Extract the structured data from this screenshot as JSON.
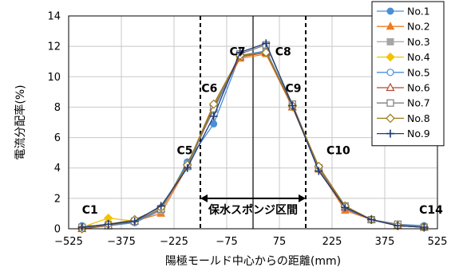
{
  "chart_data": {
    "type": "line",
    "xlabel": "陽極モールド中心からの距離(mm)",
    "ylabel": "電流分配率(%)",
    "xlim": [
      -525,
      525
    ],
    "ylim": [
      0,
      14
    ],
    "x_ticks": [
      -525,
      -375,
      -225,
      -75,
      75,
      225,
      375,
      525
    ],
    "x_tick_labels": [
      "−525",
      "−375",
      "−225",
      "−75",
      "75",
      "225",
      "375",
      "525"
    ],
    "y_ticks": [
      0,
      2,
      4,
      6,
      8,
      10,
      12,
      14
    ],
    "grid": true,
    "legend_position": "top-right",
    "x": [
      -487,
      -412,
      -337,
      -262,
      -187,
      -112,
      -37,
      37,
      112,
      187,
      262,
      337,
      412,
      487
    ],
    "series": [
      {
        "name": "No.1",
        "color": "#4a8fd6",
        "marker": "circle-filled",
        "values": [
          0.2,
          0.2,
          0.4,
          1.2,
          4.4,
          6.9,
          11.4,
          11.6,
          8.1,
          4.0,
          1.3,
          0.6,
          0.3,
          0.2
        ]
      },
      {
        "name": "No.2",
        "color": "#f07c21",
        "marker": "triangle-filled",
        "values": [
          0.0,
          0.2,
          0.5,
          1.0,
          4.1,
          8.0,
          11.2,
          11.5,
          8.0,
          3.9,
          1.2,
          0.6,
          0.2,
          0.1
        ]
      },
      {
        "name": "No.3",
        "color": "#a6a6a6",
        "marker": "square-filled",
        "values": [
          0.1,
          0.3,
          0.5,
          1.2,
          4.2,
          7.9,
          11.3,
          11.7,
          8.2,
          4.0,
          1.4,
          0.6,
          0.3,
          0.1
        ]
      },
      {
        "name": "No.4",
        "color": "#f2c300",
        "marker": "diamond-filled",
        "values": [
          0.1,
          0.7,
          0.5,
          1.3,
          4.2,
          8.1,
          11.3,
          11.6,
          8.0,
          4.1,
          1.4,
          0.6,
          0.2,
          0.1
        ]
      },
      {
        "name": "No.5",
        "color": "#4a8fd6",
        "marker": "circle-open",
        "values": [
          0.1,
          0.3,
          0.4,
          1.3,
          4.3,
          7.8,
          11.4,
          11.7,
          8.1,
          4.0,
          1.4,
          0.6,
          0.2,
          0.1
        ]
      },
      {
        "name": "No.6",
        "color": "#b34a32",
        "marker": "triangle-open",
        "values": [
          0.0,
          0.2,
          0.5,
          1.3,
          4.1,
          8.0,
          11.3,
          11.6,
          8.0,
          4.0,
          1.4,
          0.6,
          0.2,
          0.1
        ]
      },
      {
        "name": "No.7",
        "color": "#7f7f7f",
        "marker": "square-open",
        "values": [
          0.1,
          0.2,
          0.5,
          1.3,
          4.1,
          7.9,
          11.5,
          12.1,
          8.2,
          4.0,
          1.5,
          0.6,
          0.3,
          0.1
        ]
      },
      {
        "name": "No.8",
        "color": "#9c7a1c",
        "marker": "diamond-open",
        "values": [
          0.0,
          0.3,
          0.6,
          1.4,
          4.2,
          8.2,
          11.4,
          11.6,
          8.1,
          4.1,
          1.5,
          0.6,
          0.2,
          0.1
        ]
      },
      {
        "name": "No.9",
        "color": "#1f3a7a",
        "marker": "plus",
        "values": [
          0.1,
          0.3,
          0.5,
          1.5,
          4.0,
          7.4,
          11.6,
          12.2,
          8.1,
          3.8,
          1.4,
          0.6,
          0.2,
          0.1
        ]
      }
    ],
    "annotations": [
      {
        "text": "C1",
        "x": -487,
        "y": 1.0
      },
      {
        "text": "C5",
        "x": -217,
        "y": 4.9
      },
      {
        "text": "C6",
        "x": -147,
        "y": 9.0
      },
      {
        "text": "C7",
        "x": -67,
        "y": 11.4
      },
      {
        "text": "C8",
        "x": 63,
        "y": 11.4
      },
      {
        "text": "C9",
        "x": 92,
        "y": 9.0
      },
      {
        "text": "C10",
        "x": 209,
        "y": 4.9
      },
      {
        "text": "C14",
        "x": 473,
        "y": 1.0
      }
    ],
    "region": {
      "label": "保水スポンジ区間",
      "x_start": -150,
      "x_end": 150,
      "arrow_y": 2.0
    }
  }
}
